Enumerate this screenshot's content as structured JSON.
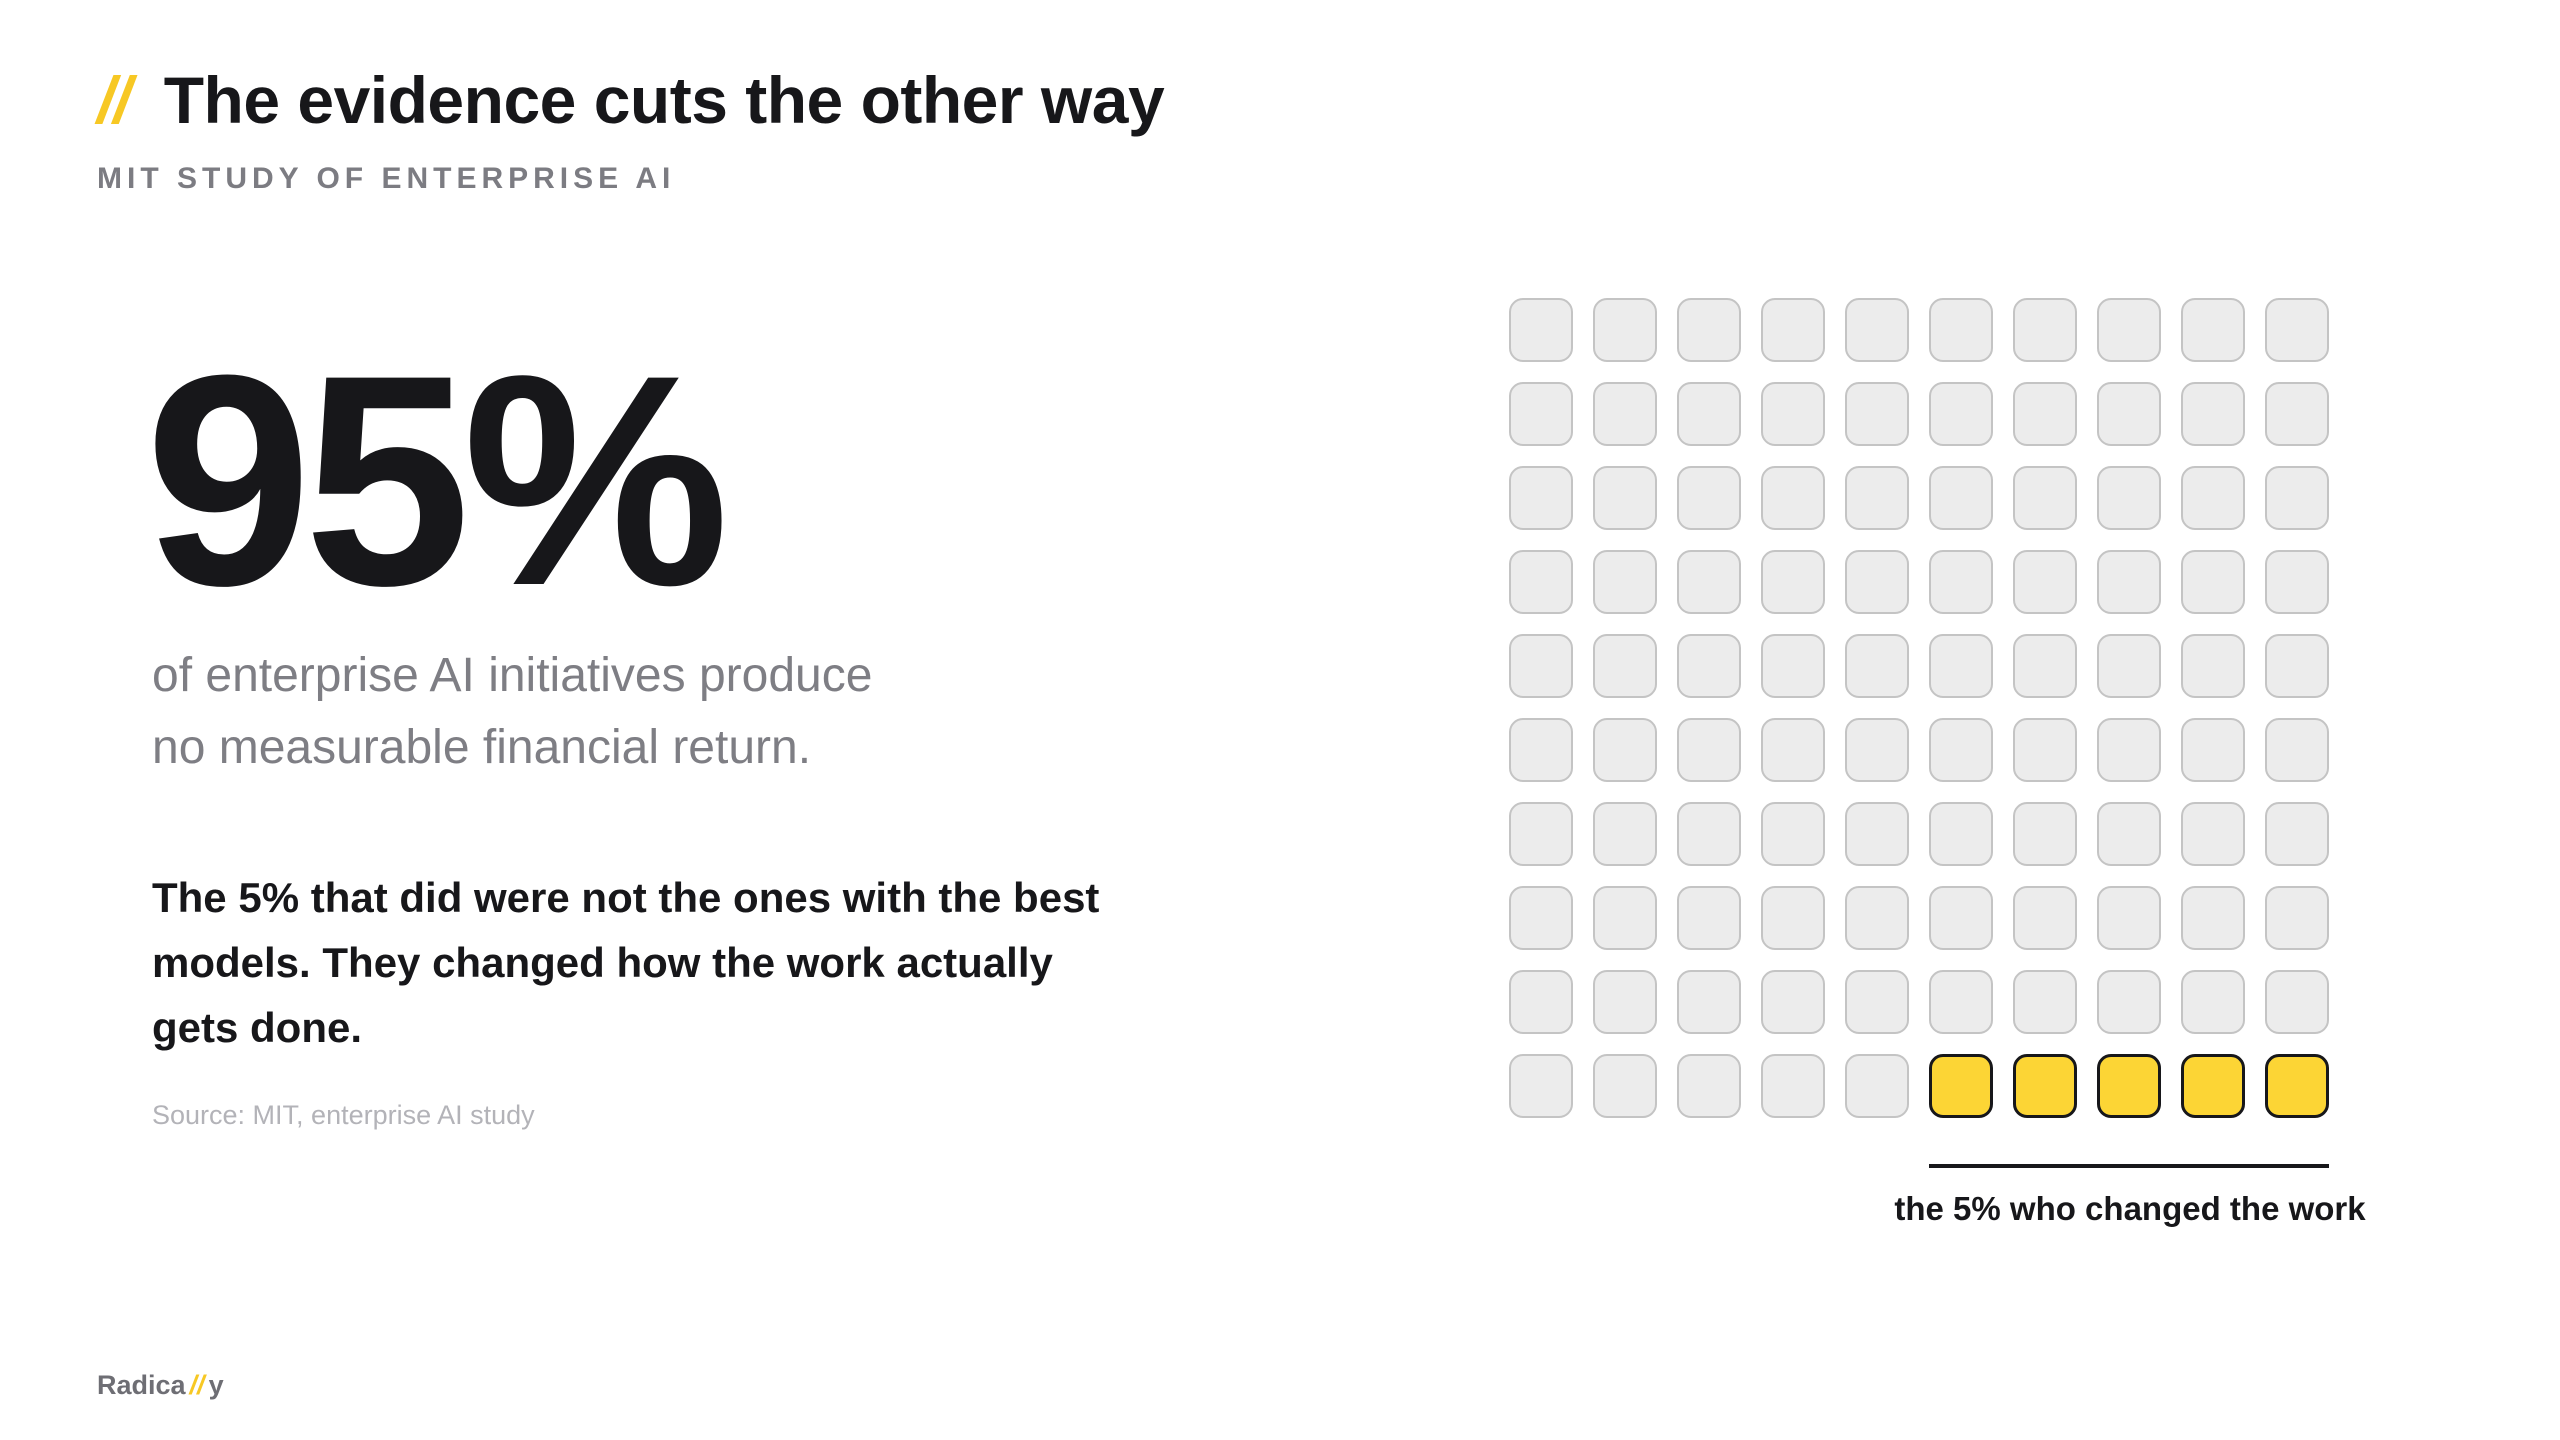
{
  "header": {
    "slashes": "//",
    "title": "The evidence cuts the other way",
    "subtitle": "MIT STUDY OF ENTERPRISE AI"
  },
  "stat": {
    "value": "95%",
    "lede_line1": "of enterprise AI initiatives produce",
    "lede_line2": "no measurable financial return.",
    "body": "The 5% that did were not the ones with the best models. They changed how the work actually gets done.",
    "source": "Source: MIT, enterprise AI study"
  },
  "chart_data": {
    "type": "waffle",
    "rows": 10,
    "cols": 10,
    "total": 100,
    "highlighted": 5,
    "highlight_position": "bottom-right",
    "annotation": "the 5% who changed the work",
    "colors": {
      "base_fill": "#ececec",
      "base_border": "#c4c4c4",
      "highlight_fill": "#fcd535",
      "highlight_border": "#17171a"
    }
  },
  "brand": {
    "prefix": "Radica",
    "slash": "//",
    "suffix": "y"
  },
  "colors": {
    "accent": "#f7c824",
    "text": "#17171a",
    "muted": "#7e7e84"
  }
}
